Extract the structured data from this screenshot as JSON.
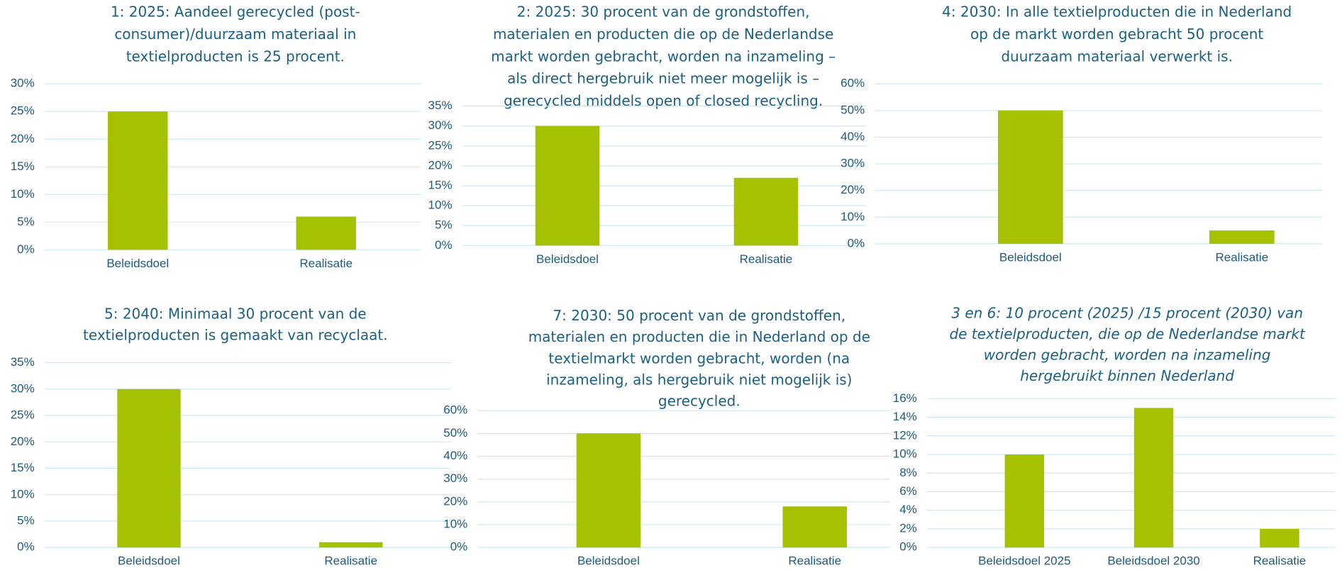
{
  "chart_data": [
    {
      "type": "bar",
      "title": [
        "1: 2025: Aandeel gerecycled (post-",
        "consumer)/duurzaam materiaal in",
        "textielproducten is 25 procent."
      ],
      "categories": [
        "Beleidsdoel",
        "Realisatie"
      ],
      "values": [
        25,
        6
      ],
      "color": "#a5c100",
      "ylim": [
        0,
        30
      ],
      "yticks": [
        {
          "value": 0,
          "label": "0%"
        },
        {
          "value": 5,
          "label": "5%"
        },
        {
          "value": 10,
          "label": "10%"
        },
        {
          "value": 15,
          "label": "15%"
        },
        {
          "value": 20,
          "label": "20%"
        },
        {
          "value": 25,
          "label": "25%"
        },
        {
          "value": 30,
          "label": "30%"
        }
      ],
      "grid": true
    },
    {
      "type": "bar",
      "title": [
        "2: 2025: 30 procent van de grondstoffen,",
        "materialen en producten die op de Nederlandse",
        "markt worden gebracht, worden na inzameling –",
        "als direct hergebruik niet meer mogelijk is –",
        "gerecycled middels open of closed recycling."
      ],
      "categories": [
        "Beleidsdoel",
        "Realisatie"
      ],
      "values": [
        30,
        17
      ],
      "color": "#a5c100",
      "ylim": [
        0,
        35
      ],
      "yticks": [
        {
          "value": 0,
          "label": "0%"
        },
        {
          "value": 5,
          "label": "5%"
        },
        {
          "value": 10,
          "label": "10%"
        },
        {
          "value": 15,
          "label": "15%"
        },
        {
          "value": 20,
          "label": "20%"
        },
        {
          "value": 25,
          "label": "25%"
        },
        {
          "value": 30,
          "label": "30%"
        },
        {
          "value": 35,
          "label": "35%"
        }
      ],
      "grid": true
    },
    {
      "type": "bar",
      "title": [
        "4: 2030: In alle textielproducten die in Nederland",
        "op de markt worden gebracht 50 procent",
        "duurzaam materiaal verwerkt is."
      ],
      "categories": [
        "Beleidsdoel",
        "Realisatie"
      ],
      "values": [
        50,
        5
      ],
      "color": "#a5c100",
      "ylim": [
        0,
        60
      ],
      "yticks": [
        {
          "value": 0,
          "label": "0%"
        },
        {
          "value": 10,
          "label": "10%"
        },
        {
          "value": 20,
          "label": "20%"
        },
        {
          "value": 30,
          "label": "30%"
        },
        {
          "value": 40,
          "label": "40%"
        },
        {
          "value": 50,
          "label": "50%"
        },
        {
          "value": 60,
          "label": "60%"
        }
      ],
      "grid": true
    },
    {
      "type": "bar",
      "title": [
        "5: 2040: Minimaal 30 procent van de",
        "textielproducten is gemaakt van recyclaat."
      ],
      "categories": [
        "Beleidsdoel",
        "Realisatie"
      ],
      "values": [
        30,
        1
      ],
      "color": "#a5c100",
      "ylim": [
        0,
        35
      ],
      "yticks": [
        {
          "value": 0,
          "label": "0%"
        },
        {
          "value": 5,
          "label": "5%"
        },
        {
          "value": 10,
          "label": "10%"
        },
        {
          "value": 15,
          "label": "15%"
        },
        {
          "value": 20,
          "label": "20%"
        },
        {
          "value": 25,
          "label": "25%"
        },
        {
          "value": 30,
          "label": "30%"
        },
        {
          "value": 35,
          "label": "35%"
        }
      ],
      "grid": true
    },
    {
      "type": "bar",
      "title": [
        "7: 2030: 50 procent van de grondstoffen,",
        "materialen en producten die in Nederland op de",
        "textielmarkt worden gebracht, worden (na",
        "inzameling, als hergebruik niet mogelijk is)",
        "gerecycled."
      ],
      "categories": [
        "Beleidsdoel",
        "Realisatie"
      ],
      "values": [
        50,
        18
      ],
      "color": "#a5c100",
      "ylim": [
        0,
        60
      ],
      "yticks": [
        {
          "value": 0,
          "label": "0%"
        },
        {
          "value": 10,
          "label": "10%"
        },
        {
          "value": 20,
          "label": "20%"
        },
        {
          "value": 30,
          "label": "30%"
        },
        {
          "value": 40,
          "label": "40%"
        },
        {
          "value": 50,
          "label": "50%"
        },
        {
          "value": 60,
          "label": "60%"
        }
      ],
      "grid": true
    },
    {
      "type": "bar",
      "title": [
        "3 en 6: 10 procent (2025) /15 procent (2030) van",
        "de textielproducten, die op de Nederlandse markt",
        "worden gebracht, worden na inzameling",
        "hergebruikt binnen Nederland"
      ],
      "title_style": "italic",
      "categories": [
        "Beleidsdoel 2025",
        "Beleidsdoel 2030",
        "Realisatie"
      ],
      "values": [
        10,
        15,
        2
      ],
      "color": "#a5c100",
      "ylim": [
        0,
        16
      ],
      "yticks": [
        {
          "value": 0,
          "label": "0%"
        },
        {
          "value": 2,
          "label": "2%"
        },
        {
          "value": 4,
          "label": "4%"
        },
        {
          "value": 6,
          "label": "6%"
        },
        {
          "value": 8,
          "label": "8%"
        },
        {
          "value": 10,
          "label": "10%"
        },
        {
          "value": 12,
          "label": "12%"
        },
        {
          "value": 14,
          "label": "14%"
        },
        {
          "value": 16,
          "label": "16%"
        }
      ],
      "grid": true
    }
  ]
}
